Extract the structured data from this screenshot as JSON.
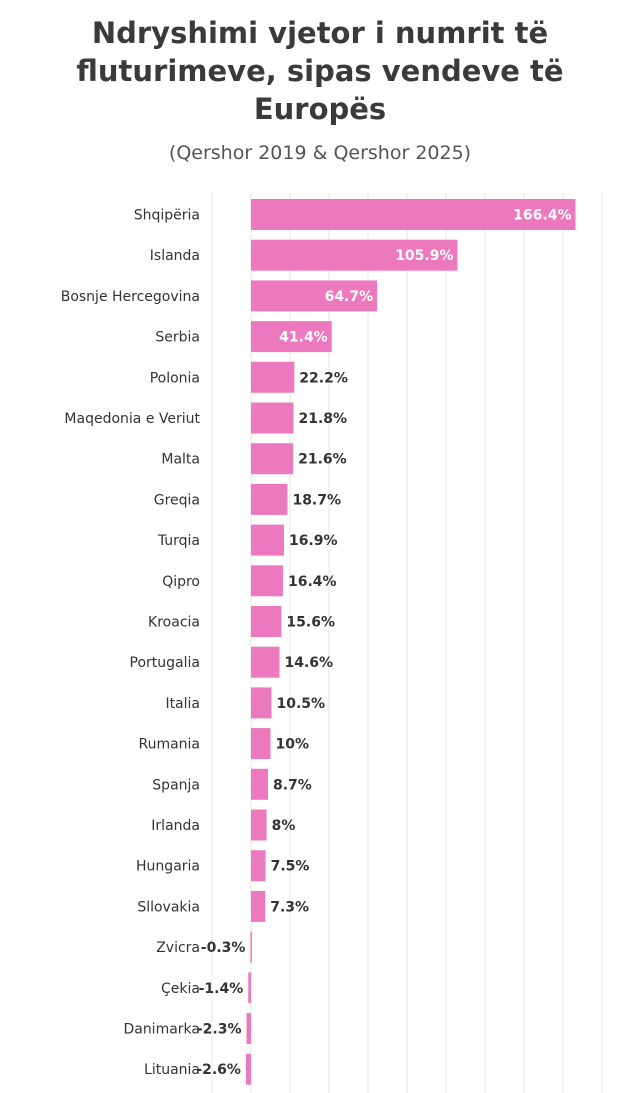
{
  "chart_data": {
    "type": "bar",
    "orientation": "horizontal",
    "title": "Ndryshimi vjetor i numrit të fluturimeve, sipas vendeve të Europës",
    "subtitle": "(Qershor 2019 & Qershor 2025)",
    "categories": [
      "Shqipëria",
      "Islanda",
      "Bosnje Hercegovina",
      "Serbia",
      "Polonia",
      "Maqedonia e Veriut",
      "Malta",
      "Greqia",
      "Turqia",
      "Qipro",
      "Kroacia",
      "Portugalia",
      "Italia",
      "Rumania",
      "Spanja",
      "Irlanda",
      "Hungaria",
      "Sllovakia",
      "Zvicra",
      "Çekia",
      "Danimarka",
      "Lituania"
    ],
    "values": [
      166.4,
      105.9,
      64.7,
      41.4,
      22.2,
      21.8,
      21.6,
      18.7,
      16.9,
      16.4,
      15.6,
      14.6,
      10.5,
      10,
      8.7,
      8,
      7.5,
      7.3,
      -0.3,
      -1.4,
      -2.3,
      -2.6
    ],
    "value_labels": [
      "166.4%",
      "105.9%",
      "64.7%",
      "41.4%",
      "22.2%",
      "21.8%",
      "21.6%",
      "18.7%",
      "16.9%",
      "16.4%",
      "15.6%",
      "14.6%",
      "10.5%",
      "10%",
      "8.7%",
      "8%",
      "7.5%",
      "7.3%",
      "-0.3%",
      "-1.4%",
      "-2.3%",
      "-2.6%"
    ],
    "xlim": [
      -20,
      180
    ],
    "grid": true,
    "bar_color": "#ec79bd",
    "grid_color": "#e6e6e6"
  }
}
